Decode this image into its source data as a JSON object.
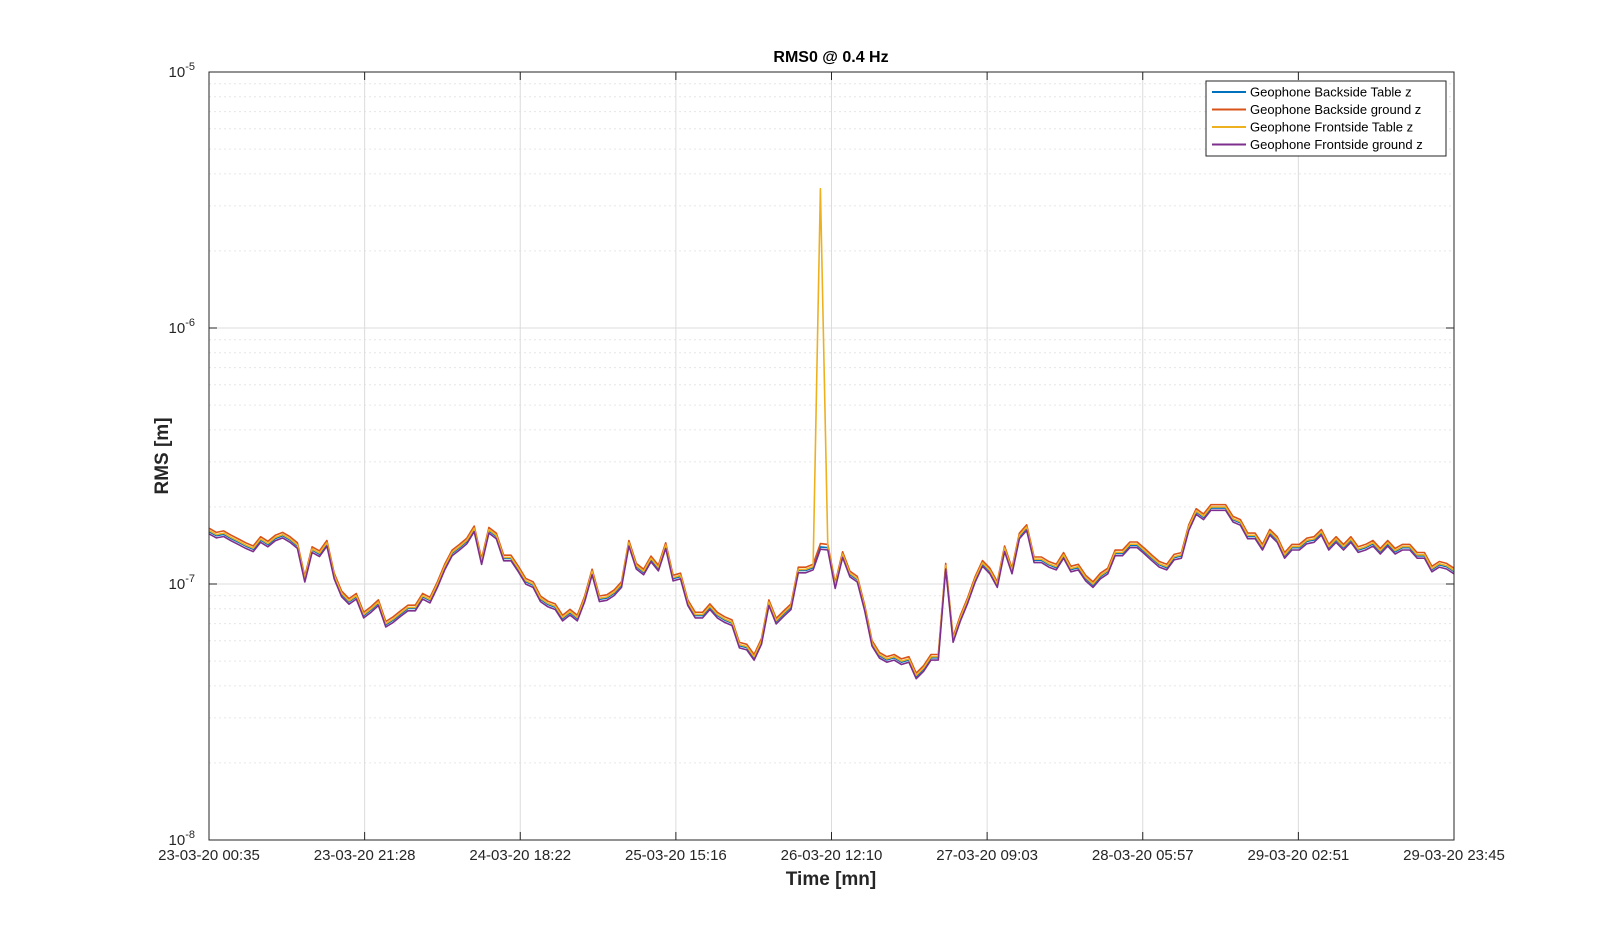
{
  "chart_data": {
    "type": "line",
    "title": "RMS0 @ 0.4 Hz",
    "xlabel": "Time [mn]",
    "ylabel": "RMS [m]",
    "y_scale": "log",
    "ylim": [
      1e-08,
      1e-05
    ],
    "y_ticks": [
      {
        "value": 1e-08,
        "base": "10",
        "exp": "-8"
      },
      {
        "value": 1e-07,
        "base": "10",
        "exp": "-7"
      },
      {
        "value": 1e-06,
        "base": "10",
        "exp": "-6"
      },
      {
        "value": 1e-05,
        "base": "10",
        "exp": "-5"
      }
    ],
    "x_tick_labels": [
      "23-03-20 00:35",
      "23-03-20 21:28",
      "24-03-20 18:22",
      "25-03-20 15:16",
      "26-03-20 12:10",
      "27-03-20 09:03",
      "28-03-20 05:57",
      "29-03-20 02:51",
      "29-03-20 23:45"
    ],
    "grid": true,
    "minor_grid": true,
    "legend_position": "top-right",
    "series": [
      {
        "name": "Geophone Backside Table z",
        "color": "#0072BD",
        "offset": 0.99
      },
      {
        "name": "Geophone Backside ground z",
        "color": "#D95319",
        "offset": 1.02
      },
      {
        "name": "Geophone Frontside Table z",
        "color": "#EDB120",
        "offset": 1.0
      },
      {
        "name": "Geophone Frontside ground z",
        "color": "#7E2F8E",
        "offset": 0.97
      }
    ],
    "values_e7": [
      1.62,
      1.56,
      1.58,
      1.52,
      1.47,
      1.42,
      1.38,
      1.5,
      1.44,
      1.52,
      1.56,
      1.5,
      1.42,
      1.05,
      1.37,
      1.32,
      1.45,
      1.08,
      0.92,
      0.86,
      0.9,
      0.76,
      0.8,
      0.85,
      0.7,
      0.73,
      0.77,
      0.81,
      0.81,
      0.9,
      0.87,
      1.0,
      1.17,
      1.33,
      1.4,
      1.48,
      1.65,
      1.23,
      1.63,
      1.55,
      1.27,
      1.27,
      1.15,
      1.03,
      1.0,
      0.88,
      0.84,
      0.82,
      0.74,
      0.78,
      0.74,
      0.88,
      1.12,
      0.88,
      0.89,
      0.93,
      1.0,
      1.45,
      1.18,
      1.12,
      1.26,
      1.16,
      1.42,
      1.06,
      1.08,
      0.85,
      0.76,
      0.76,
      0.82,
      0.76,
      0.73,
      0.71,
      0.58,
      0.57,
      0.52,
      0.6,
      0.85,
      0.72,
      0.77,
      0.82,
      1.14,
      1.14,
      1.17,
      1.41,
      1.4,
      0.99,
      1.31,
      1.1,
      1.05,
      0.81,
      0.59,
      0.53,
      0.51,
      0.52,
      0.5,
      0.51,
      0.44,
      0.47,
      0.52,
      0.52,
      1.18,
      0.61,
      0.74,
      0.87,
      1.05,
      1.21,
      1.13,
      1.0,
      1.38,
      1.13,
      1.55,
      1.67,
      1.25,
      1.25,
      1.2,
      1.17,
      1.3,
      1.15,
      1.17,
      1.06,
      1.0,
      1.08,
      1.13,
      1.33,
      1.33,
      1.43,
      1.43,
      1.35,
      1.27,
      1.2,
      1.17,
      1.28,
      1.3,
      1.67,
      1.93,
      1.84,
      2.0,
      2.0,
      2.0,
      1.8,
      1.75,
      1.55,
      1.55,
      1.4,
      1.6,
      1.5,
      1.3,
      1.4,
      1.4,
      1.48,
      1.5,
      1.6,
      1.4,
      1.5,
      1.4,
      1.5,
      1.37,
      1.4,
      1.45,
      1.35,
      1.45,
      1.35,
      1.4,
      1.4,
      1.3,
      1.3,
      1.15,
      1.2,
      1.18,
      1.13
    ],
    "spike": {
      "series": "Geophone Frontside Table z",
      "index": 83,
      "value_e7": 35
    }
  }
}
